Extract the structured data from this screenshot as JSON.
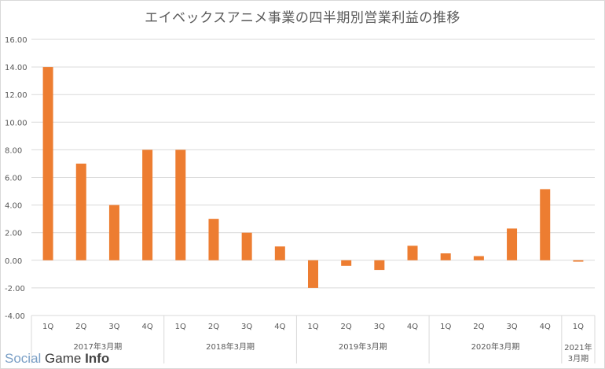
{
  "chart_data": {
    "type": "bar",
    "title": "エイベックスアニメ事業の四半期別営業利益の推移",
    "xlabel": "",
    "ylabel": "",
    "ylim": [
      -4,
      16
    ],
    "yticks": [
      "-4.00",
      "-2.00",
      "0.00",
      "2.00",
      "4.00",
      "6.00",
      "8.00",
      "10.00",
      "12.00",
      "14.00",
      "16.00"
    ],
    "grid": true,
    "legend": "none",
    "bar_color": "#ED7D31",
    "categories": [
      "1Q",
      "2Q",
      "3Q",
      "4Q",
      "1Q",
      "2Q",
      "3Q",
      "4Q",
      "1Q",
      "2Q",
      "3Q",
      "4Q",
      "1Q",
      "2Q",
      "3Q",
      "4Q",
      "1Q"
    ],
    "groups": [
      {
        "label": "2017年3月期",
        "count": 4
      },
      {
        "label": "2018年3月期",
        "count": 4
      },
      {
        "label": "2019年3月期",
        "count": 4
      },
      {
        "label": "2020年3月期",
        "count": 4
      },
      {
        "label": "2021年\n3月期",
        "count": 1
      }
    ],
    "values": [
      14.0,
      7.0,
      4.0,
      8.0,
      8.0,
      3.0,
      2.0,
      1.0,
      -2.0,
      -0.4,
      -0.7,
      1.05,
      0.5,
      0.3,
      2.3,
      5.15,
      -0.1
    ]
  },
  "watermark": {
    "social": "Social",
    "game": " Game ",
    "info": "Info"
  }
}
